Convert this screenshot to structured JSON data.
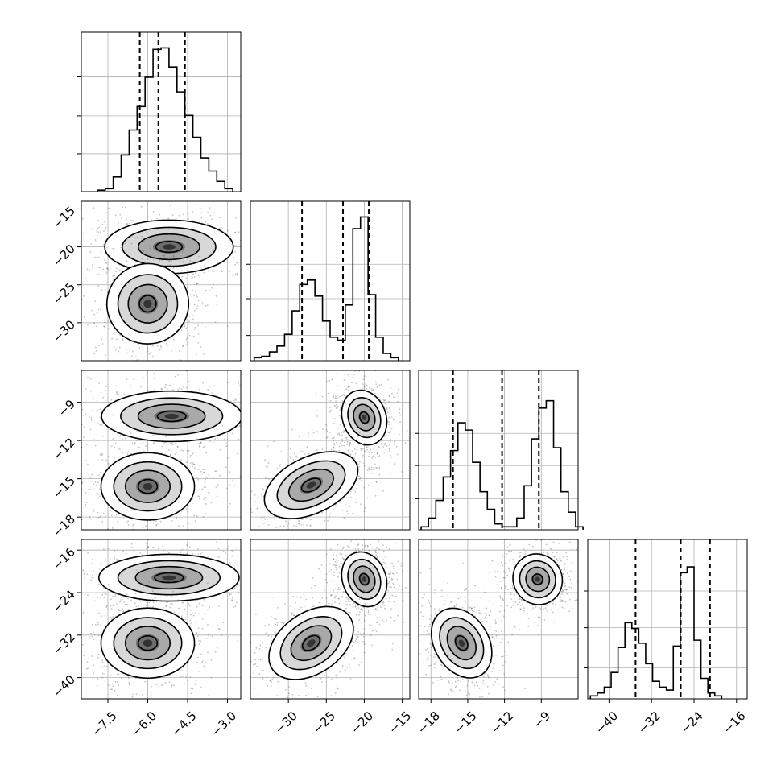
{
  "chart_data": {
    "type": "corner",
    "parameters": 4,
    "panels": {
      "diag": [
        {
          "param": 0,
          "xlim": [
            -8.5,
            -2.5
          ],
          "grid_x": [
            -7.5,
            -6.0,
            -4.5,
            -3.0
          ],
          "grid_y_frac": [
            0.33,
            0.66,
            1.0
          ],
          "quantiles": [
            -6.3,
            -5.6,
            -4.6
          ],
          "bins_start": -7.9,
          "bins_step": 0.3,
          "hist": [
            0.01,
            0.02,
            0.1,
            0.25,
            0.42,
            0.58,
            0.78,
            0.97,
            0.98,
            0.85,
            0.68,
            0.52,
            0.37,
            0.23,
            0.14,
            0.07,
            0.02
          ]
        },
        {
          "param": 1,
          "xlim": [
            -35,
            -14
          ],
          "grid_x": [
            -30,
            -25,
            -20,
            -15
          ],
          "grid_y_frac": [
            0.22,
            0.54,
            0.84
          ],
          "quantiles": [
            -28.2,
            -22.8,
            -19.4
          ],
          "bins_start": -34.5,
          "bins_step": 1.0,
          "hist": [
            0.02,
            0.03,
            0.06,
            0.1,
            0.18,
            0.34,
            0.52,
            0.55,
            0.44,
            0.27,
            0.16,
            0.14,
            0.38,
            0.9,
            0.98,
            0.45,
            0.16,
            0.05,
            0.02
          ]
        },
        {
          "param": 2,
          "xlim": [
            -19,
            -6
          ],
          "grid_x": [
            -18,
            -15,
            -12,
            -9
          ],
          "grid_y_frac": [
            0.27,
            0.56,
            0.84
          ],
          "quantiles": [
            -16.2,
            -12.2,
            -9.2
          ],
          "bins_start": -18.8,
          "bins_step": 0.6,
          "hist": [
            0.02,
            0.08,
            0.2,
            0.36,
            0.54,
            0.73,
            0.68,
            0.46,
            0.26,
            0.14,
            0.04,
            0.02,
            0.02,
            0.08,
            0.3,
            0.62,
            0.83,
            0.88,
            0.56,
            0.26,
            0.12,
            0.02
          ]
        },
        {
          "param": 3,
          "xlim": [
            -44,
            -14
          ],
          "grid_x": [
            -40,
            -32,
            -24,
            -16
          ],
          "grid_y_frac": [
            0.27,
            0.62,
            0.94
          ],
          "quantiles": [
            -35.0,
            -26.5,
            -21.0
          ],
          "bins_start": -43.5,
          "bins_step": 1.3,
          "hist": [
            0.02,
            0.04,
            0.08,
            0.18,
            0.35,
            0.52,
            0.48,
            0.38,
            0.24,
            0.12,
            0.08,
            0.06,
            0.36,
            0.86,
            0.9,
            0.4,
            0.14,
            0.04,
            0.02
          ]
        }
      ],
      "pairs": [
        {
          "row": 1,
          "col": 0,
          "clusters": [
            {
              "cx": -5.2,
              "cy": -20.0,
              "sx": 1.1,
              "sy": 1.6,
              "rot": 0.0
            },
            {
              "cx": -6.0,
              "cy": -27.5,
              "sx": 0.7,
              "sy": 2.4,
              "rot": 0.15
            }
          ]
        },
        {
          "row": 2,
          "col": 0,
          "clusters": [
            {
              "cx": -5.1,
              "cy": -10.1,
              "sx": 1.2,
              "sy": 0.9,
              "rot": 0.0
            },
            {
              "cx": -6.0,
              "cy": -15.6,
              "sx": 0.8,
              "sy": 1.2,
              "rot": 0.0
            }
          ]
        },
        {
          "row": 2,
          "col": 1,
          "clusters": [
            {
              "cx": -20.0,
              "cy": -10.2,
              "sx": 1.3,
              "sy": 1.0,
              "rot": 0.35
            },
            {
              "cx": -27.0,
              "cy": -15.5,
              "sx": 3.0,
              "sy": 1.0,
              "rot": 0.45
            }
          ]
        },
        {
          "row": 3,
          "col": 0,
          "clusters": [
            {
              "cx": -5.2,
              "cy": -21.2,
              "sx": 1.2,
              "sy": 2.0,
              "rot": 0.0
            },
            {
              "cx": -6.0,
              "cy": -33.5,
              "sx": 0.8,
              "sy": 3.0,
              "rot": 0.0
            }
          ]
        },
        {
          "row": 3,
          "col": 1,
          "clusters": [
            {
              "cx": -20.0,
              "cy": -21.5,
              "sx": 1.3,
              "sy": 2.4,
              "rot": 0.35
            },
            {
              "cx": -27.0,
              "cy": -33.5,
              "sx": 2.8,
              "sy": 2.6,
              "rot": 0.6
            }
          ]
        },
        {
          "row": 3,
          "col": 2,
          "clusters": [
            {
              "cx": -9.3,
              "cy": -21.5,
              "sx": 0.9,
              "sy": 2.2,
              "rot": 0.55
            },
            {
              "cx": -15.5,
              "cy": -33.5,
              "sx": 1.0,
              "sy": 3.2,
              "rot": 0.55
            }
          ]
        }
      ]
    },
    "ylims": {
      "1": [
        -35,
        -14
      ],
      "2": [
        -19,
        -6.5
      ],
      "3": [
        -44,
        -14
      ]
    },
    "y_ticks": {
      "1": {
        "values": [
          -15,
          -20,
          -25,
          -30
        ],
        "labels": [
          "−15",
          "−20",
          "−25",
          "−30"
        ]
      },
      "2": {
        "values": [
          -9,
          -12,
          -15,
          -18
        ],
        "labels": [
          "−9",
          "−12",
          "−15",
          "−18"
        ]
      },
      "3": {
        "values": [
          -16,
          -24,
          -32,
          -40
        ],
        "labels": [
          "−16",
          "−24",
          "−32",
          "−40"
        ]
      }
    },
    "x_ticks": {
      "0": {
        "values": [
          -7.5,
          -6.0,
          -4.5,
          -3.0
        ],
        "labels": [
          "−7.5",
          "−6.0",
          "−4.5",
          "−3.0"
        ]
      },
      "1": {
        "values": [
          -30,
          -25,
          -20,
          -15
        ],
        "labels": [
          "−30",
          "−25",
          "−20",
          "−15"
        ]
      },
      "2": {
        "values": [
          -18,
          -15,
          -12,
          -9
        ],
        "labels": [
          "−18",
          "−15",
          "−12",
          "−9"
        ]
      },
      "3": {
        "values": [
          -40,
          -32,
          -24,
          -16
        ],
        "labels": [
          "−40",
          "−32",
          "−24",
          "−16"
        ]
      }
    },
    "colors": {
      "line": "#000000",
      "grid": "#b0b0b0",
      "scatter": "#555555",
      "fill_levels": [
        "#ffffff",
        "#d8d8d8",
        "#a9a9a9",
        "#6e6e6e",
        "#333333"
      ]
    }
  }
}
